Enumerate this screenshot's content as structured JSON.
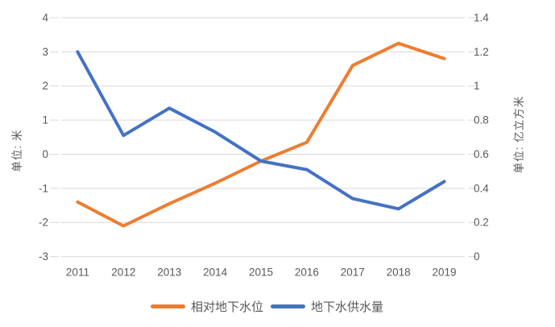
{
  "chart_data": {
    "type": "line",
    "title": "",
    "categories": [
      "2011",
      "2012",
      "2013",
      "2014",
      "2015",
      "2016",
      "2017",
      "2018",
      "2019"
    ],
    "left_axis": {
      "title": "单位: 米",
      "tick_labels": [
        "4",
        "3",
        "2",
        "1",
        "0",
        "-1",
        "-2",
        "-3"
      ],
      "max": 4,
      "min": -3
    },
    "right_axis": {
      "title": "单位: 亿立方米",
      "tick_labels": [
        "1.4",
        "1.2",
        "1",
        "0.8",
        "0.6",
        "0.4",
        "0.2",
        "0"
      ],
      "max": 1.4,
      "min": 0
    },
    "series": [
      {
        "name": "相对地下水位",
        "slug": "relative-groundwater-level",
        "axis": "left",
        "color": "#ED7D31",
        "values": [
          -1.4,
          -2.1,
          -1.45,
          -0.85,
          -0.2,
          0.35,
          2.6,
          3.25,
          2.8
        ]
      },
      {
        "name": "地下水供水量",
        "slug": "groundwater-supply-volume",
        "axis": "right",
        "color": "#4472C4",
        "values": [
          1.2,
          0.71,
          0.87,
          0.73,
          0.56,
          0.51,
          0.34,
          0.28,
          0.44
        ]
      }
    ],
    "grid": true,
    "legend_position": "bottom",
    "gridline_color": "#D9D9D9",
    "text_color": "#595959"
  }
}
